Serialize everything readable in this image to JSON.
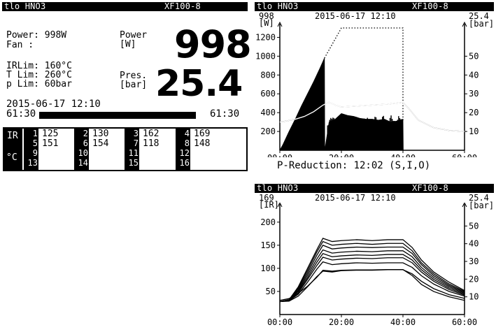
{
  "panel_main": {
    "header_left": "tlo HNO3",
    "header_right": "XF100-8",
    "power_label": "Power: 998W",
    "fan_label": "Fan :",
    "power_big_label_1": "Power",
    "power_big_label_2": "[W]",
    "power_value": "998",
    "irlim_label": "IRLim: 160°C",
    "tlim_label": "T Lim: 260°C",
    "plim_label": "p Lim:  60bar",
    "pres_label_1": "Pres.",
    "pres_label_2": "[bar]",
    "pres_value": "25.4",
    "datetime": "2015-06-17 12:10",
    "time_left": "61:30",
    "time_right": "61:30",
    "progress_fraction": 1.0
  },
  "ir_table": {
    "label_ir": "IR",
    "label_unit": "°C",
    "groups": [
      {
        "nums": [
          "1",
          "5",
          "9",
          "13"
        ],
        "vals": [
          "125",
          "151"
        ]
      },
      {
        "nums": [
          "2",
          "6",
          "10",
          "14"
        ],
        "vals": [
          "130",
          "154"
        ]
      },
      {
        "nums": [
          "3",
          "7",
          "11",
          "15"
        ],
        "vals": [
          "162",
          "118"
        ]
      },
      {
        "nums": [
          "4",
          "8",
          "12",
          "16"
        ],
        "vals": [
          "169",
          "148"
        ]
      }
    ]
  },
  "chart_top": {
    "header_left": "tlo HNO3",
    "header_right": "XF100-8",
    "datetime": "2015-06-17 12:10",
    "left_value": "998",
    "left_unit": "[W]",
    "right_value": "25.4",
    "right_unit": "[bar]",
    "footer": "P-Reduction: 12:02 (S,I,O)"
  },
  "chart_bottom": {
    "header_left": "tlo HNO3",
    "header_right": "XF100-8",
    "datetime": "2015-06-17 12:10",
    "left_value": "169",
    "left_unit": "[IR]",
    "right_value": "25.4",
    "right_unit": "[bar]"
  },
  "chart_data": [
    {
      "type": "area",
      "title": "2015-06-17 12:10",
      "x_ticks": [
        "00:00",
        "20:00",
        "40:00",
        "60:00"
      ],
      "xlim": [
        0,
        60
      ],
      "y_left_ticks": [
        "200",
        "400",
        "600",
        "800",
        "1000",
        "1200"
      ],
      "ylim_left": [
        0,
        1300
      ],
      "y_right_ticks": [
        "10",
        "20",
        "30",
        "40",
        "50"
      ],
      "ylim_right": [
        0,
        65
      ],
      "series": [
        {
          "role": "power",
          "axis": "left",
          "style": "filled",
          "x": [
            0,
            1,
            3,
            5,
            7,
            9,
            11,
            13,
            14.5,
            14.6,
            16,
            18,
            20,
            22,
            24,
            26,
            28,
            30,
            32,
            34,
            36,
            38,
            40,
            40.1
          ],
          "y": [
            0,
            60,
            200,
            330,
            470,
            600,
            730,
            870,
            980,
            0,
            300,
            330,
            390,
            370,
            360,
            340,
            330,
            330,
            320,
            330,
            300,
            310,
            330,
            0
          ]
        },
        {
          "role": "power-limit",
          "axis": "left",
          "style": "dotted",
          "x": [
            14.5,
            20,
            40,
            40
          ],
          "y": [
            980,
            1300,
            1300,
            300
          ]
        },
        {
          "role": "pressure",
          "axis": "right",
          "style": "line",
          "x": [
            0,
            2,
            5,
            8,
            11,
            14,
            16,
            18,
            20,
            25,
            30,
            35,
            40,
            42,
            45,
            50,
            55,
            60
          ],
          "y": [
            15,
            15.5,
            16.5,
            18,
            20.5,
            24,
            25.5,
            24,
            23,
            23.5,
            24,
            24.5,
            25.4,
            22,
            16,
            12,
            10.5,
            10
          ]
        }
      ]
    },
    {
      "type": "line",
      "title": "2015-06-17 12:10",
      "x_ticks": [
        "00:00",
        "20:00",
        "40:00",
        "60:00"
      ],
      "xlim": [
        0,
        60
      ],
      "y_left_ticks": [
        "50",
        "100",
        "150",
        "200"
      ],
      "ylim_left": [
        0,
        230
      ],
      "y_right_ticks": [
        "10",
        "20",
        "30",
        "40",
        "50"
      ],
      "ylim_right": [
        0,
        60
      ],
      "series": [
        {
          "axis": "left",
          "x": [
            0,
            3,
            6,
            9,
            12,
            14,
            17,
            20,
            25,
            30,
            35,
            40,
            43,
            46,
            50,
            55,
            60
          ],
          "y": [
            28,
            32,
            60,
            100,
            140,
            165,
            158,
            160,
            162,
            160,
            162,
            162,
            145,
            118,
            92,
            70,
            52
          ]
        },
        {
          "axis": "left",
          "x": [
            0,
            3,
            6,
            9,
            12,
            14,
            17,
            20,
            25,
            30,
            35,
            40,
            43,
            46,
            50,
            55,
            60
          ],
          "y": [
            28,
            32,
            58,
            95,
            135,
            158,
            150,
            152,
            154,
            152,
            154,
            154,
            138,
            112,
            88,
            66,
            50
          ]
        },
        {
          "axis": "left",
          "x": [
            0,
            3,
            6,
            9,
            12,
            14,
            17,
            20,
            25,
            30,
            35,
            40,
            43,
            46,
            50,
            55,
            60
          ],
          "y": [
            28,
            32,
            55,
            90,
            128,
            150,
            142,
            144,
            146,
            145,
            146,
            146,
            132,
            108,
            84,
            63,
            48
          ]
        },
        {
          "axis": "left",
          "x": [
            0,
            3,
            6,
            9,
            12,
            14,
            17,
            20,
            25,
            30,
            35,
            40,
            43,
            46,
            50,
            55,
            60
          ],
          "y": [
            28,
            31,
            52,
            85,
            120,
            140,
            133,
            135,
            137,
            136,
            138,
            138,
            125,
            102,
            80,
            60,
            46
          ]
        },
        {
          "axis": "left",
          "x": [
            0,
            3,
            6,
            9,
            12,
            14,
            17,
            20,
            25,
            30,
            35,
            40,
            43,
            46,
            50,
            55,
            60
          ],
          "y": [
            28,
            31,
            50,
            80,
            113,
            132,
            125,
            127,
            129,
            128,
            130,
            130,
            118,
            97,
            76,
            57,
            44
          ]
        },
        {
          "axis": "left",
          "x": [
            0,
            3,
            6,
            9,
            12,
            14,
            17,
            20,
            25,
            30,
            35,
            40,
            43,
            46,
            50,
            55,
            60
          ],
          "y": [
            28,
            30,
            47,
            76,
            106,
            124,
            118,
            120,
            122,
            121,
            123,
            123,
            112,
            92,
            72,
            54,
            42
          ]
        },
        {
          "axis": "left",
          "x": [
            0,
            3,
            6,
            9,
            12,
            14,
            17,
            20,
            25,
            30,
            35,
            40,
            43,
            46,
            50,
            55,
            60
          ],
          "y": [
            28,
            30,
            44,
            70,
            98,
            114,
            108,
            110,
            112,
            111,
            112,
            112,
            102,
            84,
            66,
            50,
            40
          ]
        },
        {
          "axis": "left",
          "x": [
            0,
            3,
            6,
            9,
            12,
            14,
            17,
            20,
            25,
            30,
            35,
            40,
            43,
            46,
            50,
            55,
            60
          ],
          "y": [
            28,
            29,
            40,
            60,
            82,
            94,
            92,
            95,
            96,
            96,
            97,
            97,
            88,
            72,
            56,
            43,
            35
          ]
        },
        {
          "axis": "right",
          "x": [
            0,
            3,
            6,
            9,
            12,
            14,
            17,
            20,
            25,
            30,
            35,
            40,
            43,
            46,
            50,
            55,
            60
          ],
          "y": [
            8,
            9,
            12,
            16,
            21,
            25,
            24.5,
            25,
            25.2,
            25.2,
            25.4,
            25.4,
            22,
            17,
            13,
            10,
            8
          ]
        }
      ]
    }
  ]
}
